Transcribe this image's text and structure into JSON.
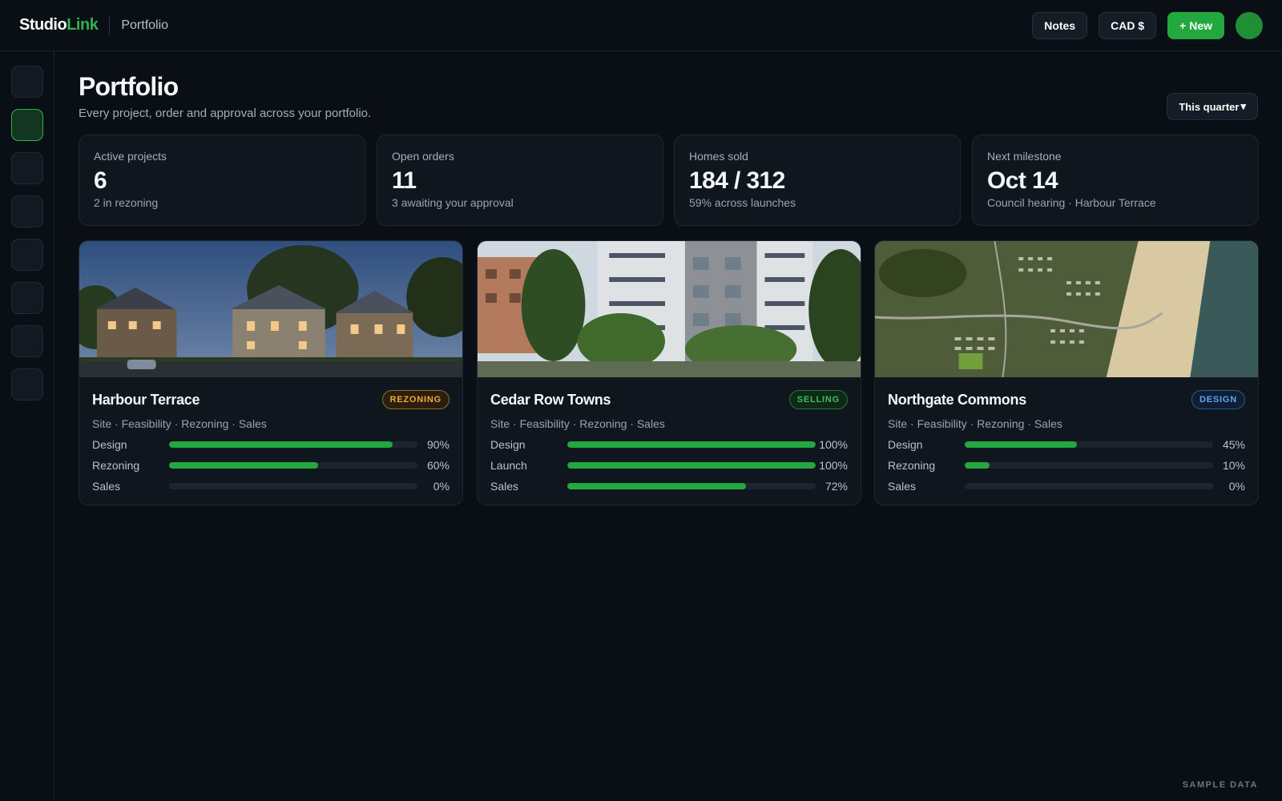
{
  "brand": {
    "part1": "Studio",
    "part2": "Link",
    "accent": "#2fb24c"
  },
  "breadcrumb": "Portfolio",
  "topbar": {
    "notes_label": "Notes",
    "currency_label": "CAD $",
    "new_label": "+ New"
  },
  "sidebar": {
    "item_count": 8,
    "active_index": 1
  },
  "header": {
    "title": "Portfolio",
    "subtitle": "Every project, order and approval across your portfolio.",
    "period_label": "This quarter",
    "period_caret": "▾"
  },
  "kpis": [
    {
      "label": "Active projects",
      "value": "6",
      "note": "2 in rezoning"
    },
    {
      "label": "Open orders",
      "value": "11",
      "note": "3 awaiting your approval"
    },
    {
      "label": "Homes sold",
      "value": "184 / 312",
      "note": "59% across launches"
    },
    {
      "label": "Next milestone",
      "value": "Oct 14",
      "note": "Council hearing · Harbour Terrace"
    }
  ],
  "projects": [
    {
      "name": "Harbour Terrace",
      "status": "REZONING",
      "status_color": "#f0a93b",
      "stages": "Site · Feasibility · Rezoning · Sales",
      "progress": [
        {
          "label": "Design",
          "value": 90,
          "pct": "90%"
        },
        {
          "label": "Rezoning",
          "value": 60,
          "pct": "60%"
        },
        {
          "label": "Sales",
          "value": 0,
          "pct": "0%"
        }
      ]
    },
    {
      "name": "Cedar Row Towns",
      "status": "SELLING",
      "status_color": "#39c25a",
      "stages": "Site · Feasibility · Rezoning · Sales",
      "progress": [
        {
          "label": "Design",
          "value": 100,
          "pct": "100%"
        },
        {
          "label": "Launch",
          "value": 100,
          "pct": "100%"
        },
        {
          "label": "Sales",
          "value": 72,
          "pct": "72%"
        }
      ]
    },
    {
      "name": "Northgate Commons",
      "status": "DESIGN",
      "status_color": "#5aa7f5",
      "stages": "Site · Feasibility · Rezoning · Sales",
      "progress": [
        {
          "label": "Design",
          "value": 45,
          "pct": "45%"
        },
        {
          "label": "Rezoning",
          "value": 10,
          "pct": "10%"
        },
        {
          "label": "Sales",
          "value": 0,
          "pct": "0%"
        }
      ]
    }
  ],
  "footer_note": "SAMPLE DATA"
}
